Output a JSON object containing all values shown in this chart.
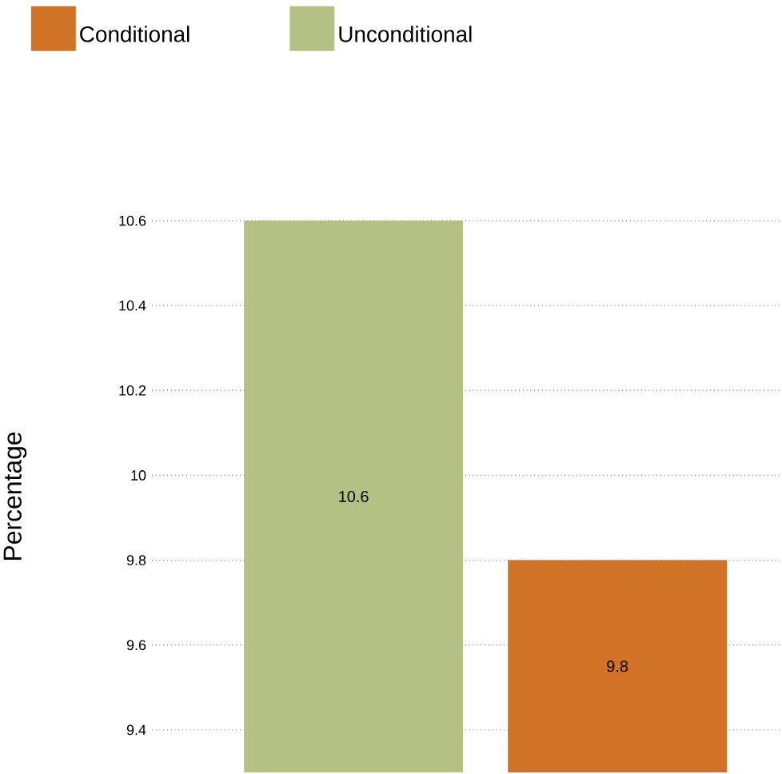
{
  "chart_data": {
    "type": "bar",
    "ylabel": "Percentage",
    "categories": [
      null,
      null
    ],
    "series": [
      {
        "name": "Conditional",
        "color": "#d07326",
        "values": [
          null,
          9.8
        ]
      },
      {
        "name": "Unconditional",
        "color": "#b5c184",
        "values": [
          10.6,
          null
        ]
      }
    ],
    "ylim": [
      9.3,
      10.6
    ],
    "yticks": [
      9.4,
      9.6,
      9.8,
      10,
      10.2,
      10.4,
      10.6
    ],
    "grid": "y",
    "legend": "top",
    "data_labels": true
  }
}
